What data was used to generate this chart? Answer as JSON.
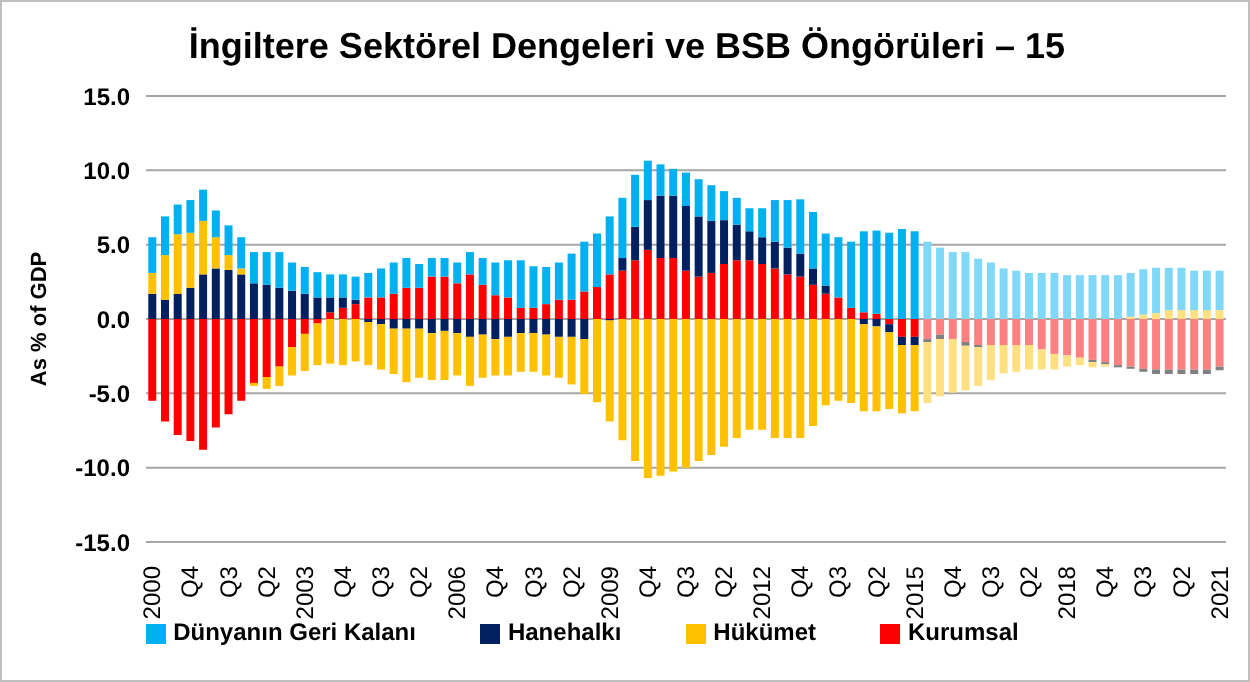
{
  "chart_data": {
    "type": "bar",
    "title": "İngiltere Sektörel Dengeleri ve BSB Öngörüleri – 15",
    "ylabel": "As % of GDP",
    "stacked": true,
    "grid": "y",
    "legend": "bottom",
    "ylim": [
      -15,
      15
    ],
    "yticks": [
      {
        "value": -15,
        "label": "-15.0"
      },
      {
        "value": -10,
        "label": "-10.0"
      },
      {
        "value": -5,
        "label": "-5.0"
      },
      {
        "value": 0,
        "label": "0.0"
      },
      {
        "value": 5,
        "label": "5.0"
      },
      {
        "value": 10,
        "label": "10.0"
      },
      {
        "value": 15,
        "label": "15.0"
      }
    ],
    "categories": [
      "2000",
      null,
      null,
      "Q4",
      null,
      null,
      "Q3",
      null,
      null,
      "Q2",
      null,
      null,
      "2003",
      null,
      null,
      "Q4",
      null,
      null,
      "Q3",
      null,
      null,
      "Q2",
      null,
      null,
      "2006",
      null,
      null,
      "Q4",
      null,
      null,
      "Q3",
      null,
      null,
      "Q2",
      null,
      null,
      "2009",
      null,
      null,
      "Q4",
      null,
      null,
      "Q3",
      null,
      null,
      "Q2",
      null,
      null,
      "2012",
      null,
      null,
      "Q4",
      null,
      null,
      "Q3",
      null,
      null,
      "Q2",
      null,
      null,
      "2015",
      null,
      null,
      "Q4",
      null,
      null,
      "Q3",
      null,
      null,
      "Q2",
      null,
      null,
      "2018",
      null,
      null,
      "Q4",
      null,
      null,
      "Q3",
      null,
      null,
      "Q2",
      null,
      null,
      "2021"
    ],
    "series": [
      {
        "name": "Kurumsal",
        "color": "#ff0000",
        "colors": [
          "#ff0000",
          "#ff0000",
          "#ff0000",
          "#ff0000",
          "#ff0000",
          "#ff0000",
          "#ff0000",
          "#ff0000",
          "#ff0000",
          "#ff0000",
          "#ff0000",
          "#ff0000",
          "#ff0000",
          "#ff0000",
          "#ff0000",
          "#ff0000",
          "#ff0000",
          "#ff0000",
          "#ff0000",
          "#ff0000",
          "#ff0000",
          "#ff0000",
          "#ff0000",
          "#ff0000",
          "#ff0000",
          "#ff0000",
          "#ff0000",
          "#ff0000",
          "#ff0000",
          "#ff0000",
          "#ff0000",
          "#ff0000",
          "#ff0000",
          "#ff0000",
          "#ff0000",
          "#ff0000",
          "#ff0000",
          "#ff0000",
          "#ff0000",
          "#ff0000",
          "#ff0000",
          "#ff0000",
          "#ff0000",
          "#ff0000",
          "#ff0000",
          "#ff0000",
          "#ff0000",
          "#ff0000",
          "#ff0000",
          "#ff0000",
          "#ff0000",
          "#ff0000",
          "#ff0000",
          "#ff0000",
          "#ff0000",
          "#ff0000",
          "#ff0000",
          "#ff0000",
          "#ff0000",
          "#ff0000",
          "#ff0000",
          "#ff8080",
          "#ff8080",
          "#ff8080",
          "#ff8080",
          "#ff8080",
          "#ff8080",
          "#ff8080",
          "#ff8080",
          "#ff8080",
          "#ff8080",
          "#ff8080",
          "#ff8080",
          "#ff8080",
          "#ff8080",
          "#ff8080",
          "#ff8080",
          "#ff8080",
          "#ff8080",
          "#ff8080",
          "#ff8080",
          "#ff8080",
          "#ff8080",
          "#ff8080",
          "#ff8080"
        ],
        "values": [
          -5.5,
          -6.9,
          -7.8,
          -8.2,
          -8.8,
          -7.3,
          -6.4,
          -5.5,
          -4.3,
          -3.9,
          -3.2,
          -1.9,
          -1.0,
          -0.3,
          0.45,
          0.75,
          1.0,
          1.45,
          1.45,
          1.7,
          2.1,
          2.1,
          2.85,
          2.85,
          2.4,
          3.0,
          2.3,
          1.6,
          1.45,
          0.75,
          0.75,
          1.0,
          1.3,
          1.3,
          1.85,
          2.15,
          3.0,
          3.25,
          3.95,
          4.65,
          4.1,
          4.1,
          3.25,
          2.85,
          3.1,
          3.7,
          3.95,
          3.95,
          3.7,
          3.4,
          3.0,
          2.85,
          2.3,
          1.7,
          1.45,
          0.75,
          0.45,
          0.35,
          -0.35,
          -1.2,
          -1.2,
          -1.35,
          -1.05,
          -1.35,
          -1.55,
          -1.75,
          -1.75,
          -1.75,
          -1.75,
          -1.75,
          -2.05,
          -2.35,
          -2.45,
          -2.6,
          -2.75,
          -2.9,
          -3.1,
          -3.2,
          -3.35,
          -3.4,
          -3.4,
          -3.4,
          -3.4,
          -3.4,
          -3.2
        ]
      },
      {
        "name": "Hanehalkı",
        "color": "#002060",
        "colors": [
          "#002060",
          "#002060",
          "#002060",
          "#002060",
          "#002060",
          "#002060",
          "#002060",
          "#002060",
          "#002060",
          "#002060",
          "#002060",
          "#002060",
          "#002060",
          "#002060",
          "#002060",
          "#002060",
          "#002060",
          "#002060",
          "#002060",
          "#002060",
          "#002060",
          "#002060",
          "#002060",
          "#002060",
          "#002060",
          "#002060",
          "#002060",
          "#002060",
          "#002060",
          "#002060",
          "#002060",
          "#002060",
          "#002060",
          "#002060",
          "#002060",
          "#002060",
          "#002060",
          "#002060",
          "#002060",
          "#002060",
          "#002060",
          "#002060",
          "#002060",
          "#002060",
          "#002060",
          "#002060",
          "#002060",
          "#002060",
          "#002060",
          "#002060",
          "#002060",
          "#002060",
          "#002060",
          "#002060",
          "#002060",
          "#002060",
          "#002060",
          "#002060",
          "#002060",
          "#002060",
          "#002060",
          "#808080",
          "#808080",
          "#808080",
          "#808080",
          "#808080",
          "#808080",
          "#808080",
          "#808080",
          "#808080",
          "#808080",
          "#808080",
          "#808080",
          "#808080",
          "#808080",
          "#808080",
          "#808080",
          "#808080",
          "#808080",
          "#808080",
          "#808080",
          "#808080",
          "#808080",
          "#808080",
          "#808080"
        ],
        "values": [
          1.7,
          1.3,
          1.7,
          2.1,
          3.0,
          3.4,
          3.3,
          3.0,
          2.4,
          2.3,
          2.1,
          1.9,
          1.7,
          1.45,
          1.0,
          0.7,
          0.3,
          -0.2,
          -0.35,
          -0.65,
          -0.65,
          -0.65,
          -0.95,
          -0.8,
          -0.95,
          -1.2,
          -1.05,
          -1.35,
          -1.2,
          -0.95,
          -0.95,
          -1.05,
          -1.2,
          -1.2,
          -1.35,
          0,
          -0.1,
          0.85,
          2.25,
          3.35,
          4.2,
          4.2,
          4.35,
          4.05,
          3.5,
          2.95,
          2.4,
          1.95,
          1.8,
          1.8,
          1.8,
          1.55,
          1.1,
          0.55,
          0,
          0,
          -0.35,
          -0.5,
          -0.55,
          -0.55,
          -0.55,
          -0.2,
          -0.3,
          0,
          -0.25,
          -0.15,
          0,
          0,
          0,
          0,
          0,
          0,
          0,
          0,
          -0.15,
          -0.15,
          -0.15,
          -0.15,
          -0.2,
          -0.3,
          -0.3,
          -0.3,
          -0.3,
          -0.3,
          -0.25
        ]
      },
      {
        "name": "Hükümet",
        "color": "#ffc000",
        "colors": [
          "#ffc000",
          "#ffc000",
          "#ffc000",
          "#ffc000",
          "#ffc000",
          "#ffc000",
          "#ffc000",
          "#ffc000",
          "#ffc000",
          "#ffc000",
          "#ffc000",
          "#ffc000",
          "#ffc000",
          "#ffc000",
          "#ffc000",
          "#ffc000",
          "#ffc000",
          "#ffc000",
          "#ffc000",
          "#ffc000",
          "#ffc000",
          "#ffc000",
          "#ffc000",
          "#ffc000",
          "#ffc000",
          "#ffc000",
          "#ffc000",
          "#ffc000",
          "#ffc000",
          "#ffc000",
          "#ffc000",
          "#ffc000",
          "#ffc000",
          "#ffc000",
          "#ffc000",
          "#ffc000",
          "#ffc000",
          "#ffc000",
          "#ffc000",
          "#ffc000",
          "#ffc000",
          "#ffc000",
          "#ffc000",
          "#ffc000",
          "#ffc000",
          "#ffc000",
          "#ffc000",
          "#ffc000",
          "#ffc000",
          "#ffc000",
          "#ffc000",
          "#ffc000",
          "#ffc000",
          "#ffc000",
          "#ffc000",
          "#ffc000",
          "#ffc000",
          "#ffc000",
          "#ffc000",
          "#ffc000",
          "#ffc000",
          "#ffe080",
          "#ffe080",
          "#ffe080",
          "#ffe080",
          "#ffe080",
          "#ffe080",
          "#ffe080",
          "#ffe080",
          "#ffe080",
          "#ffe080",
          "#ffe080",
          "#ffe080",
          "#ffe080",
          "#ffe080",
          "#ffe080",
          "#ffe080",
          "#ffe080",
          "#ffe080",
          "#ffe080",
          "#ffe080",
          "#ffe080",
          "#ffe080",
          "#ffe080",
          "#ffe080"
        ],
        "values": [
          1.4,
          3.0,
          4.0,
          3.7,
          3.6,
          2.1,
          1.0,
          0.4,
          -0.2,
          -0.8,
          -1.3,
          -1.9,
          -2.5,
          -2.8,
          -3.0,
          -3.1,
          -2.85,
          -2.9,
          -3.05,
          -3.05,
          -3.6,
          -3.3,
          -3.15,
          -3.3,
          -2.85,
          -3.3,
          -2.9,
          -2.45,
          -2.6,
          -2.6,
          -2.6,
          -2.75,
          -2.75,
          -3.2,
          -3.7,
          -5.6,
          -6.8,
          -8.15,
          -9.55,
          -10.7,
          -10.55,
          -10.25,
          -10.0,
          -9.55,
          -9.15,
          -8.6,
          -8.0,
          -7.45,
          -7.45,
          -8.0,
          -8.0,
          -8.0,
          -7.2,
          -5.8,
          -5.5,
          -5.65,
          -5.85,
          -5.7,
          -5.15,
          -4.6,
          -4.45,
          -4.1,
          -3.85,
          -3.6,
          -3.0,
          -2.6,
          -2.35,
          -1.9,
          -1.8,
          -1.65,
          -1.35,
          -1.05,
          -0.75,
          -0.5,
          -0.35,
          -0.15,
          0,
          0.15,
          0.3,
          0.4,
          0.6,
          0.6,
          0.6,
          0.6,
          0.6
        ]
      },
      {
        "name": "Dünyanın Geri Kalanı",
        "color": "#00b0f0",
        "colors": [
          "#00b0f0",
          "#00b0f0",
          "#00b0f0",
          "#00b0f0",
          "#00b0f0",
          "#00b0f0",
          "#00b0f0",
          "#00b0f0",
          "#00b0f0",
          "#00b0f0",
          "#00b0f0",
          "#00b0f0",
          "#00b0f0",
          "#00b0f0",
          "#00b0f0",
          "#00b0f0",
          "#00b0f0",
          "#00b0f0",
          "#00b0f0",
          "#00b0f0",
          "#00b0f0",
          "#00b0f0",
          "#00b0f0",
          "#00b0f0",
          "#00b0f0",
          "#00b0f0",
          "#00b0f0",
          "#00b0f0",
          "#00b0f0",
          "#00b0f0",
          "#00b0f0",
          "#00b0f0",
          "#00b0f0",
          "#00b0f0",
          "#00b0f0",
          "#00b0f0",
          "#00b0f0",
          "#00b0f0",
          "#00b0f0",
          "#00b0f0",
          "#00b0f0",
          "#00b0f0",
          "#00b0f0",
          "#00b0f0",
          "#00b0f0",
          "#00b0f0",
          "#00b0f0",
          "#00b0f0",
          "#00b0f0",
          "#00b0f0",
          "#00b0f0",
          "#00b0f0",
          "#00b0f0",
          "#00b0f0",
          "#00b0f0",
          "#00b0f0",
          "#00b0f0",
          "#00b0f0",
          "#00b0f0",
          "#00b0f0",
          "#00b0f0",
          "#80d8f8",
          "#80d8f8",
          "#80d8f8",
          "#80d8f8",
          "#80d8f8",
          "#80d8f8",
          "#80d8f8",
          "#80d8f8",
          "#80d8f8",
          "#80d8f8",
          "#80d8f8",
          "#80d8f8",
          "#80d8f8",
          "#80d8f8",
          "#80d8f8",
          "#80d8f8",
          "#80d8f8",
          "#80d8f8",
          "#80d8f8",
          "#80d8f8",
          "#80d8f8",
          "#80d8f8",
          "#80d8f8",
          "#80d8f8"
        ],
        "values": [
          2.4,
          2.6,
          2.0,
          2.2,
          2.1,
          1.8,
          2.0,
          2.1,
          2.1,
          2.2,
          2.4,
          1.9,
          1.8,
          1.7,
          1.55,
          1.55,
          1.55,
          1.65,
          1.95,
          2.1,
          2.0,
          1.6,
          1.25,
          1.25,
          1.4,
          1.5,
          1.8,
          2.2,
          2.5,
          3.2,
          2.8,
          2.5,
          2.5,
          3.1,
          3.35,
          3.6,
          3.9,
          4.05,
          3.5,
          2.65,
          2.1,
          1.8,
          2.25,
          2.5,
          2.4,
          1.95,
          1.8,
          1.55,
          1.95,
          2.8,
          3.2,
          3.65,
          3.8,
          3.5,
          4.05,
          4.45,
          5.45,
          5.6,
          5.8,
          6.05,
          5.9,
          5.2,
          4.8,
          4.5,
          4.5,
          4.05,
          3.8,
          3.4,
          3.25,
          3.1,
          3.1,
          3.1,
          2.95,
          2.95,
          2.95,
          2.95,
          2.95,
          2.95,
          3.05,
          3.05,
          2.85,
          2.85,
          2.65,
          2.65,
          2.65
        ]
      }
    ]
  }
}
